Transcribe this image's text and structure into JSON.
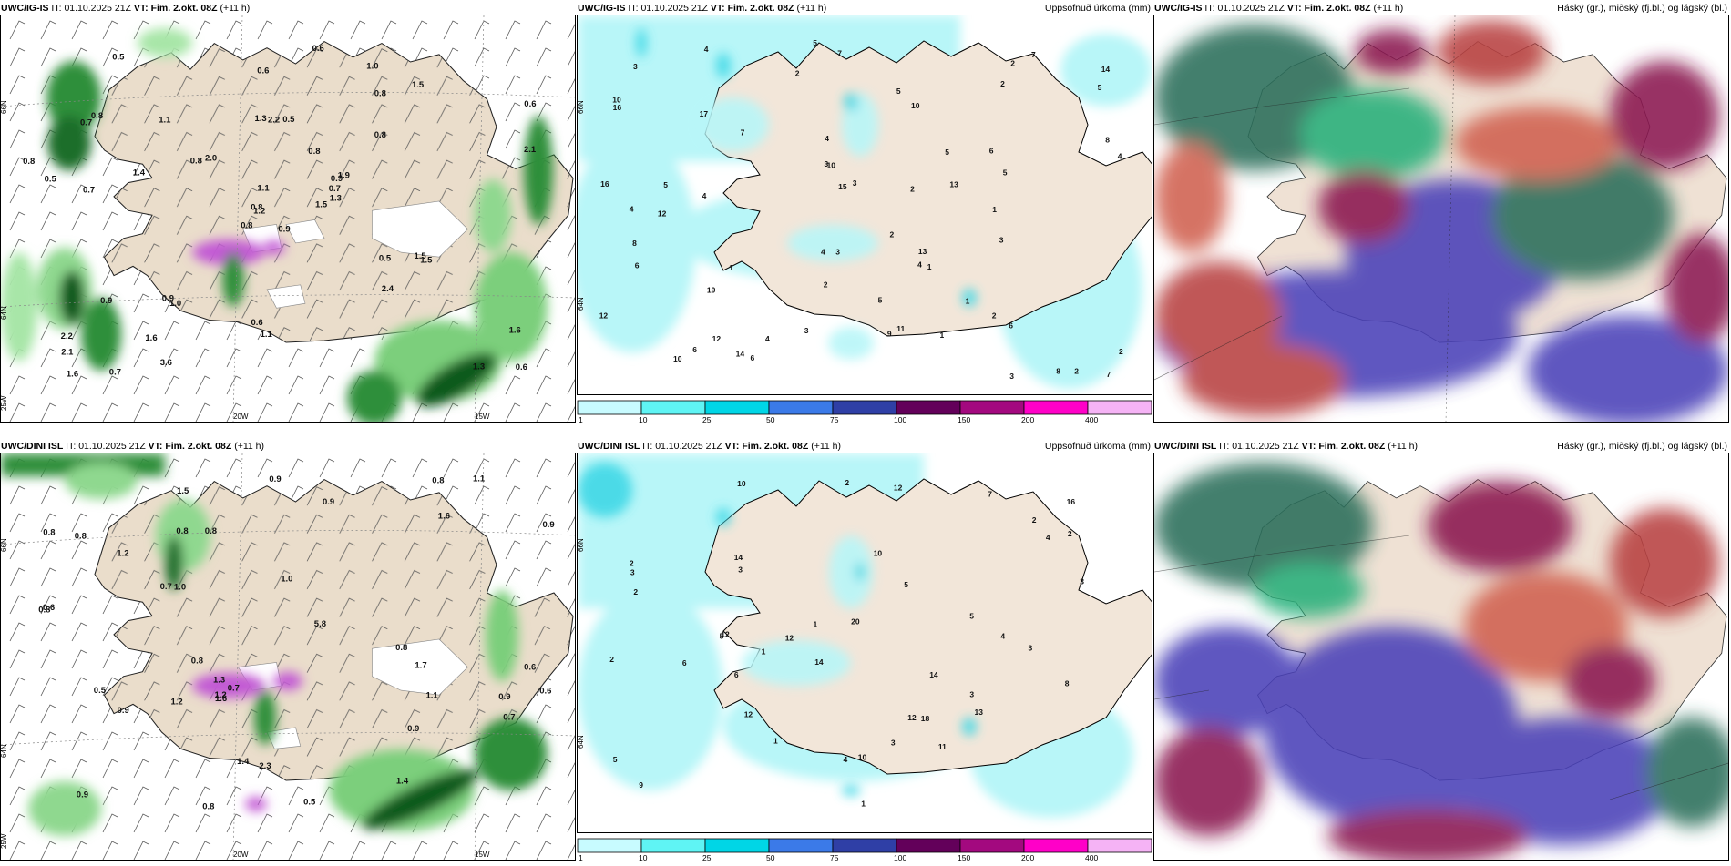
{
  "panels": [
    {
      "id": "igis-wind",
      "model": "UWC/IG-IS",
      "it_label": "IT:",
      "it": "01.10.2025 21Z",
      "vt_label": "VT: Fim. 2.okt. 08Z",
      "lead": "(+11 h)",
      "right_title": "",
      "lat_labels": [
        "66N",
        "64N",
        "25W"
      ],
      "lon_labels": [
        "20W",
        "15W"
      ],
      "values": [
        "0.9",
        "0.7",
        "1.2",
        "2.2",
        "0.9",
        "1.0",
        "1.0",
        "0.5",
        "0.8",
        "1.5",
        "0.5",
        "0.6",
        "0.7",
        "0.6",
        "0.8",
        "0.8",
        "0.7",
        "1.3",
        "0.8",
        "0.9",
        "2.0",
        "2.1",
        "1.6",
        "2.2",
        "1.9",
        "1.5",
        "0.8",
        "0.6",
        "0.5",
        "0.5",
        "2.1",
        "0.8",
        "0.6",
        "1.1",
        "1.1",
        "1.5",
        "0.9",
        "1.3",
        "1.6",
        "1.5",
        "0.6",
        "0.8",
        "1.4",
        "2.4",
        "3.6",
        "0.8",
        "0.7",
        "1.6",
        "1.1",
        "1.3"
      ]
    },
    {
      "id": "igis-precip",
      "model": "UWC/IG-IS",
      "it_label": "IT:",
      "it": "01.10.2025 21Z",
      "vt_label": "VT: Fim. 2.okt. 08Z",
      "lead": "(+11 h)",
      "right_title": "Uppsöfnuð úrkoma (mm)",
      "lat_labels": [
        "66N",
        "64N"
      ],
      "values": [
        "16",
        "7",
        "6",
        "14",
        "10",
        "8",
        "12",
        "10",
        "4",
        "7",
        "3",
        "3",
        "5",
        "16",
        "17",
        "19",
        "11",
        "4",
        "2",
        "2",
        "1",
        "6",
        "5",
        "10",
        "12",
        "15",
        "13",
        "4",
        "6",
        "9",
        "8",
        "3",
        "2",
        "10",
        "14",
        "6",
        "5",
        "3",
        "4",
        "7",
        "5",
        "13",
        "2",
        "4",
        "3",
        "1",
        "2",
        "12",
        "3",
        "4",
        "5",
        "2",
        "1",
        "1",
        "1",
        "2",
        "4",
        "3",
        "2",
        "5",
        "4",
        "6",
        "8",
        "7",
        "2",
        "5"
      ],
      "colorbar": {
        "labels": [
          "1",
          "10",
          "25",
          "50",
          "75",
          "100",
          "150",
          "200",
          "400"
        ],
        "colors": [
          "#c8fbff",
          "#5ff4f4",
          "#00d6e6",
          "#3b7ae8",
          "#2f3fa6",
          "#63005a",
          "#a3097f",
          "#ff00c8",
          "#f5b3f5"
        ]
      }
    },
    {
      "id": "igis-cloud",
      "model": "UWC/IG-IS",
      "it_label": "IT:",
      "it": "01.10.2025 21Z",
      "vt_label": "VT: Fim. 2.okt. 08Z",
      "lead": "(+11 h)",
      "right_title": "Háský (gr.), miðský (fj.bl.) og lágský (bl.)"
    },
    {
      "id": "dini-wind",
      "model": "UWC/DINI ISL",
      "it_label": "IT:",
      "it": "01.10.2025 21Z",
      "vt_label": "VT: Fim. 2.okt. 08Z",
      "lead": "(+11 h)",
      "right_title": "",
      "lat_labels": [
        "66N",
        "64N",
        "25W"
      ],
      "lon_labels": [
        "20W",
        "15W"
      ],
      "values": [
        "0.8",
        "0.5",
        "0.8",
        "0.8",
        "0.7",
        "0.6",
        "0.8",
        "1.6",
        "0.6",
        "0.8",
        "0.8",
        "1.4",
        "0.9",
        "1.2",
        "1.7",
        "1.2",
        "1.3",
        "1.5",
        "0.9",
        "0.6",
        "0.7",
        "0.9",
        "1.6",
        "1.2",
        "2.3",
        "1.1",
        "5.8",
        "1.4",
        "0.8",
        "1.0",
        "0.8",
        "0.9",
        "0.9",
        "0.5",
        "0.7",
        "0.9",
        "1.1",
        "1.0",
        "0.9",
        "0.8"
      ]
    },
    {
      "id": "dini-precip",
      "model": "UWC/DINI ISL",
      "it_label": "IT:",
      "it": "01.10.2025 21Z",
      "vt_label": "VT: Fim. 2.okt. 08Z",
      "lead": "(+11 h)",
      "right_title": "Uppsöfnuð úrkoma (mm)",
      "lat_labels": [
        "66N",
        "64N"
      ],
      "values": [
        "12",
        "20",
        "11",
        "12",
        "12",
        "14",
        "10",
        "16",
        "13",
        "18",
        "14",
        "12",
        "12",
        "14",
        "10",
        "2",
        "4",
        "3",
        "5",
        "6",
        "7",
        "8",
        "9",
        "1",
        "2",
        "3",
        "5",
        "4",
        "2",
        "6",
        "1",
        "3",
        "2",
        "5",
        "10",
        "3",
        "3",
        "5",
        "1",
        "4",
        "2",
        "3",
        "1",
        "2"
      ],
      "colorbar": {
        "labels": [
          "1",
          "10",
          "25",
          "50",
          "75",
          "100",
          "150",
          "200",
          "400"
        ],
        "colors": [
          "#c8fbff",
          "#5ff4f4",
          "#00d6e6",
          "#3b7ae8",
          "#2f3fa6",
          "#63005a",
          "#a3097f",
          "#ff00c8",
          "#f5b3f5"
        ]
      }
    },
    {
      "id": "dini-cloud",
      "model": "UWC/DINI ISL",
      "it_label": "IT:",
      "it": "01.10.2025 21Z",
      "vt_label": "VT: Fim. 2.okt. 08Z",
      "lead": "(+11 h)",
      "right_title": "Háský (gr.), miðský (fj.bl.) og lágský (bl.)"
    }
  ]
}
